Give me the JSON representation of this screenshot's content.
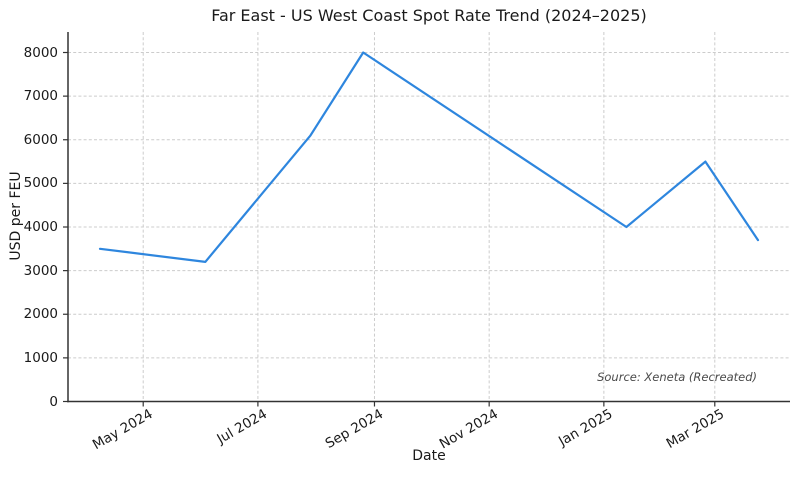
{
  "chart_data": {
    "type": "line",
    "title": "Far East - US West Coast Spot Rate Trend (2024–2025)",
    "xlabel": "Date",
    "ylabel": "USD per FEU",
    "annotation": "Source: Xeneta (Recreated)",
    "grid": true,
    "legend": "none",
    "colors": {
      "line": "#2e86de",
      "grid": "#cccccc",
      "axis": "#333333",
      "text": "#1a1a1a",
      "annotation_text": "#4a4a4a",
      "background": "#ffffff"
    },
    "x_ticks": [
      {
        "date": "2024-05-01",
        "label": "May 2024"
      },
      {
        "date": "2024-07-01",
        "label": "Jul 2024"
      },
      {
        "date": "2024-09-01",
        "label": "Sep 2024"
      },
      {
        "date": "2024-11-01",
        "label": "Nov 2024"
      },
      {
        "date": "2025-01-01",
        "label": "Jan 2025"
      },
      {
        "date": "2025-03-01",
        "label": "Mar 2025"
      }
    ],
    "y_ticks": [
      0,
      1000,
      2000,
      3000,
      4000,
      5000,
      6000,
      7000,
      8000
    ],
    "xlim": [
      "2024-03-22",
      "2025-04-10"
    ],
    "ylim": [
      0,
      8470
    ],
    "series": [
      {
        "points": [
          {
            "date": "2024-04-08",
            "value": 3500
          },
          {
            "date": "2024-06-03",
            "value": 3200
          },
          {
            "date": "2024-07-29",
            "value": 6100
          },
          {
            "date": "2024-08-26",
            "value": 8000
          },
          {
            "date": "2025-01-13",
            "value": 4000
          },
          {
            "date": "2025-02-24",
            "value": 5500
          },
          {
            "date": "2025-03-24",
            "value": 3700
          }
        ]
      }
    ]
  }
}
